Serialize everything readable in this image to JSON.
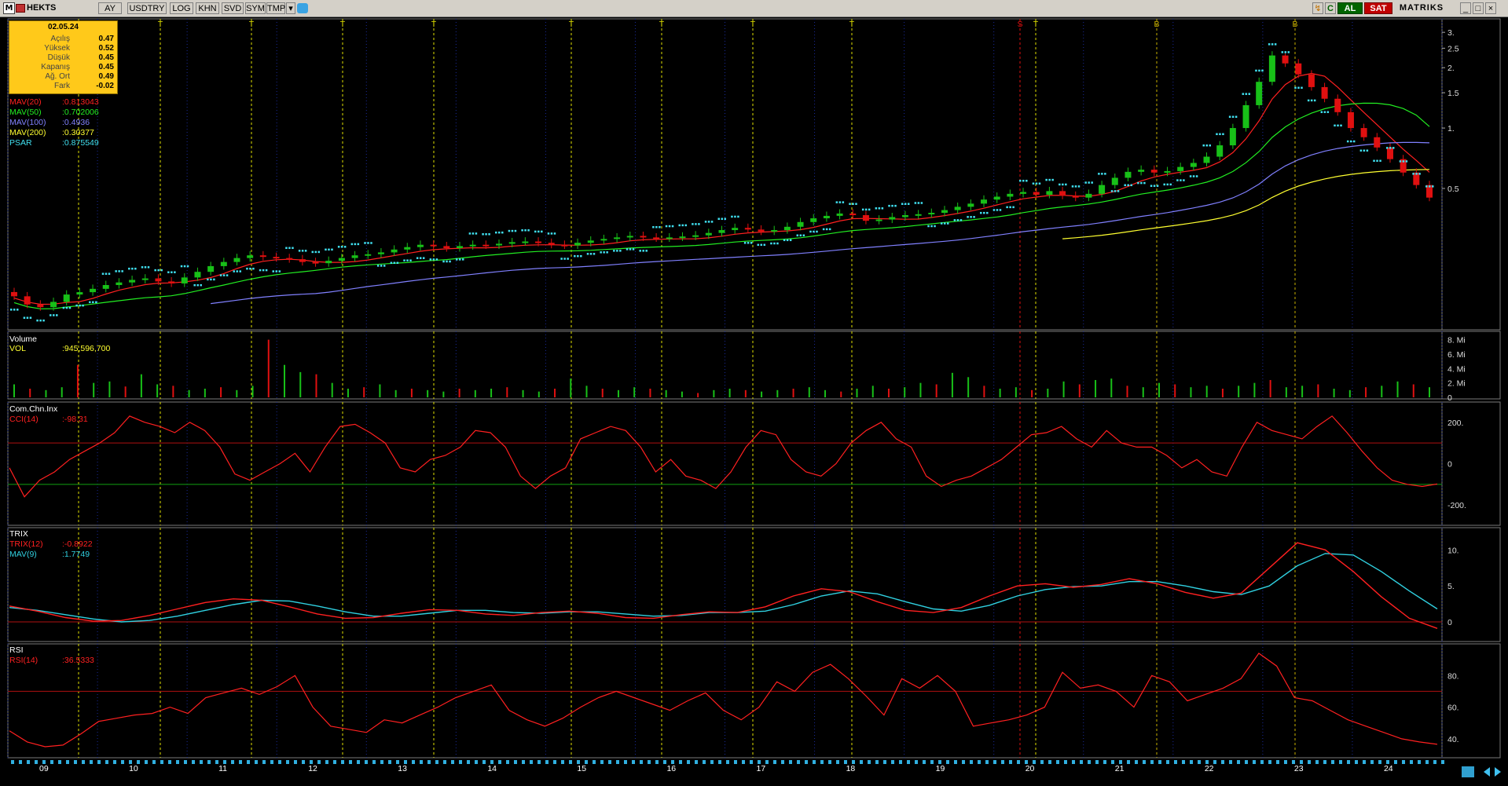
{
  "toolbar": {
    "app_icon": "M",
    "symbol": "HEKTS",
    "buttons": [
      "AY",
      "USDTRY",
      "LOG",
      "KHN",
      "SVD",
      "SYM",
      "TMP"
    ],
    "buy_label": "AL",
    "sell_label": "SAT",
    "brand": "MATRIKS",
    "icons": [
      "flag-icon",
      "dropdown-icon",
      "twitter-icon",
      "refresh-icon",
      "c-icon",
      "minimize-icon",
      "maximize-icon",
      "close-icon"
    ]
  },
  "info_box": {
    "date": "02.05.24",
    "rows": [
      {
        "label": "Açılış",
        "value": "0.47"
      },
      {
        "label": "Yüksek",
        "value": "0.52"
      },
      {
        "label": "Düşük",
        "value": "0.45"
      },
      {
        "label": "Kapanış",
        "value": "0.45"
      },
      {
        "label": "Ağ. Ort",
        "value": "0.49"
      },
      {
        "label": "Fark",
        "value": "-0.02"
      }
    ]
  },
  "indicators": [
    {
      "name": "MAV(20)",
      "value": ":0.813043",
      "color": "#ff2020"
    },
    {
      "name": "MAV(50)",
      "value": ":0.702006",
      "color": "#22ee22"
    },
    {
      "name": "MAV(100)",
      "value": ":0.4936",
      "color": "#8080ff"
    },
    {
      "name": "MAV(200)",
      "value": ":0.30377",
      "color": "#ffff30"
    },
    {
      "name": "PSAR",
      "value": ":0.875549",
      "color": "#40e0f0"
    }
  ],
  "panels": {
    "volume": {
      "title": "Volume",
      "label": "VOL",
      "value": ":945,596,700"
    },
    "cci": {
      "title": "Com.Chn.Inx",
      "label": "CCI(14)",
      "value": ":-98.31"
    },
    "trix": {
      "title": "TRIX",
      "label": "TRIX(12)",
      "value": ":-0.8922",
      "label2": "MAV(9)",
      "value2": ":1.7749"
    },
    "rsi": {
      "title": "RSI",
      "label": "RSI(14)",
      "value": ":36.5333"
    }
  },
  "colors": {
    "up": "#18c018",
    "down": "#e01010",
    "psar": "#40e0f0",
    "mav20": "#ff2020",
    "mav50": "#22ee22",
    "mav100": "#8080ff",
    "mav200": "#ffff30",
    "trix": "#ff2020",
    "trix_mav": "#30d0e0",
    "signal_t": "#e0e000",
    "signal_s": "#e01010",
    "signal_b": "#e0e000"
  },
  "chart_data": {
    "type": "candlestick",
    "x_labels": [
      "09",
      "10",
      "11",
      "12",
      "13",
      "14",
      "15",
      "16",
      "17",
      "18",
      "19",
      "20",
      "21",
      "22",
      "23",
      "24"
    ],
    "price_axis_ticks": [
      "3.",
      "2.5",
      "2.",
      "1.5",
      "1.",
      "0.5"
    ],
    "log_scale": true,
    "volume_axis_ticks": [
      "8. Mi",
      "6. Mi",
      "4. Mi",
      "2. Mi",
      "0"
    ],
    "cci_axis_ticks": [
      "200.",
      "0",
      "-200."
    ],
    "cci_levels": [
      100,
      -100
    ],
    "trix_axis_ticks": [
      "10.",
      "5.",
      "0"
    ],
    "rsi_axis_ticks": [
      "80.",
      "60.",
      "40."
    ],
    "rsi_level": 70,
    "signal_markers": [
      "T",
      "T",
      "T",
      "T",
      "T",
      "T",
      "T",
      "T",
      "T",
      "S",
      "T",
      "B",
      "B"
    ],
    "close_series": [
      0.145,
      0.132,
      0.128,
      0.136,
      0.148,
      0.152,
      0.158,
      0.165,
      0.17,
      0.175,
      0.178,
      0.172,
      0.168,
      0.18,
      0.192,
      0.205,
      0.215,
      0.225,
      0.232,
      0.228,
      0.225,
      0.222,
      0.215,
      0.212,
      0.218,
      0.225,
      0.232,
      0.235,
      0.24,
      0.248,
      0.255,
      0.262,
      0.258,
      0.252,
      0.258,
      0.262,
      0.26,
      0.265,
      0.27,
      0.272,
      0.268,
      0.262,
      0.26,
      0.268,
      0.275,
      0.28,
      0.285,
      0.29,
      0.285,
      0.282,
      0.285,
      0.288,
      0.292,
      0.3,
      0.31,
      0.318,
      0.312,
      0.305,
      0.31,
      0.322,
      0.34,
      0.355,
      0.365,
      0.375,
      0.368,
      0.345,
      0.35,
      0.36,
      0.368,
      0.372,
      0.378,
      0.39,
      0.405,
      0.42,
      0.44,
      0.455,
      0.47,
      0.48,
      0.465,
      0.485,
      0.46,
      0.45,
      0.47,
      0.52,
      0.565,
      0.605,
      0.62,
      0.6,
      0.61,
      0.64,
      0.67,
      0.72,
      0.82,
      1.0,
      1.3,
      1.7,
      2.3,
      2.1,
      1.85,
      1.6,
      1.4,
      1.2,
      1.0,
      0.9,
      0.8,
      0.7,
      0.6,
      0.52,
      0.45
    ],
    "trix_series": [
      2.2,
      1.5,
      0.6,
      0.1,
      0.2,
      0.9,
      1.8,
      2.7,
      3.2,
      3.0,
      2.1,
      1.1,
      0.5,
      0.6,
      1.2,
      1.7,
      1.6,
      1.1,
      0.9,
      1.3,
      1.5,
      1.2,
      0.6,
      0.5,
      1.0,
      1.4,
      1.3,
      2.1,
      3.6,
      4.6,
      4.2,
      2.8,
      1.6,
      1.3,
      2.0,
      3.6,
      5.0,
      5.3,
      4.8,
      5.2,
      6.0,
      5.3,
      4.1,
      3.3,
      4.0,
      7.5,
      11.0,
      10.0,
      7.0,
      3.5,
      0.5,
      -0.9
    ],
    "trix_mav_series": [
      2.0,
      1.6,
      1.0,
      0.4,
      0.0,
      0.2,
      0.8,
      1.6,
      2.4,
      3.0,
      2.9,
      2.2,
      1.4,
      0.8,
      0.8,
      1.2,
      1.6,
      1.6,
      1.3,
      1.2,
      1.4,
      1.4,
      1.1,
      0.8,
      0.9,
      1.3,
      1.3,
      1.5,
      2.4,
      3.6,
      4.3,
      3.9,
      2.8,
      1.8,
      1.5,
      2.3,
      3.6,
      4.5,
      4.9,
      5.0,
      5.6,
      5.6,
      5.0,
      4.2,
      3.8,
      5.0,
      7.8,
      9.5,
      9.3,
      7.0,
      4.3,
      1.8
    ],
    "rsi_series": [
      45,
      38,
      35,
      36,
      43,
      51,
      53,
      55,
      56,
      60,
      56,
      66,
      69,
      72,
      68,
      73,
      80,
      60,
      48,
      46,
      44,
      52,
      50,
      55,
      60,
      66,
      70,
      74,
      58,
      52,
      48,
      53,
      60,
      66,
      70,
      66,
      62,
      58,
      64,
      69,
      58,
      52,
      60,
      76,
      70,
      82,
      87,
      78,
      67,
      55,
      78,
      72,
      80,
      70,
      48,
      50,
      52,
      55,
      60,
      82,
      72,
      74,
      70,
      60,
      80,
      76,
      64,
      68,
      72,
      78,
      94,
      86,
      66,
      64,
      58,
      52,
      48,
      44,
      40,
      38,
      36.5
    ],
    "cci_series": [
      -20,
      -160,
      -80,
      -40,
      20,
      60,
      100,
      150,
      230,
      200,
      180,
      150,
      200,
      160,
      80,
      -50,
      -80,
      -40,
      0,
      50,
      -40,
      80,
      180,
      190,
      150,
      100,
      -20,
      -40,
      20,
      40,
      80,
      160,
      150,
      80,
      -60,
      -120,
      -60,
      -20,
      120,
      150,
      180,
      160,
      80,
      -40,
      20,
      -60,
      -80,
      -120,
      -40,
      80,
      160,
      140,
      20,
      -40,
      -60,
      0,
      100,
      160,
      200,
      120,
      80,
      -60,
      -110,
      -80,
      -60,
      -20,
      20,
      80,
      140,
      150,
      180,
      120,
      80,
      160,
      100,
      80,
      80,
      40,
      -20,
      20,
      -40,
      -60,
      80,
      200,
      160,
      140,
      120,
      180,
      230,
      150,
      60,
      -20,
      -80,
      -100,
      -110,
      -98.31
    ],
    "volume_series": [
      1.8,
      1.2,
      1.0,
      1.4,
      4.5,
      2.0,
      2.2,
      1.5,
      3.2,
      1.8,
      1.6,
      1.0,
      1.2,
      1.4,
      1.0,
      1.6,
      8.0,
      4.5,
      3.5,
      3.2,
      2.0,
      1.2,
      1.4,
      1.8,
      1.0,
      1.2,
      1.0,
      0.8,
      1.2,
      1.0,
      1.2,
      1.4,
      1.0,
      0.8,
      1.2,
      2.6,
      1.6,
      1.2,
      1.0,
      1.4,
      1.2,
      1.0,
      0.8,
      0.6,
      1.0,
      1.2,
      1.0,
      0.8,
      1.0,
      1.2,
      1.4,
      1.0,
      0.8,
      1.2,
      1.6,
      1.2,
      1.4,
      2.0,
      1.8,
      3.4,
      2.8,
      1.6,
      1.2,
      1.4,
      1.0,
      1.2,
      2.2,
      1.8,
      2.4,
      2.6,
      1.6,
      1.4,
      2.0,
      1.8,
      1.4,
      1.6,
      1.2,
      1.6,
      2.0,
      2.4,
      1.4,
      1.6,
      1.8,
      1.2,
      1.0,
      1.4,
      1.6,
      2.2,
      1.8,
      1.4
    ]
  }
}
